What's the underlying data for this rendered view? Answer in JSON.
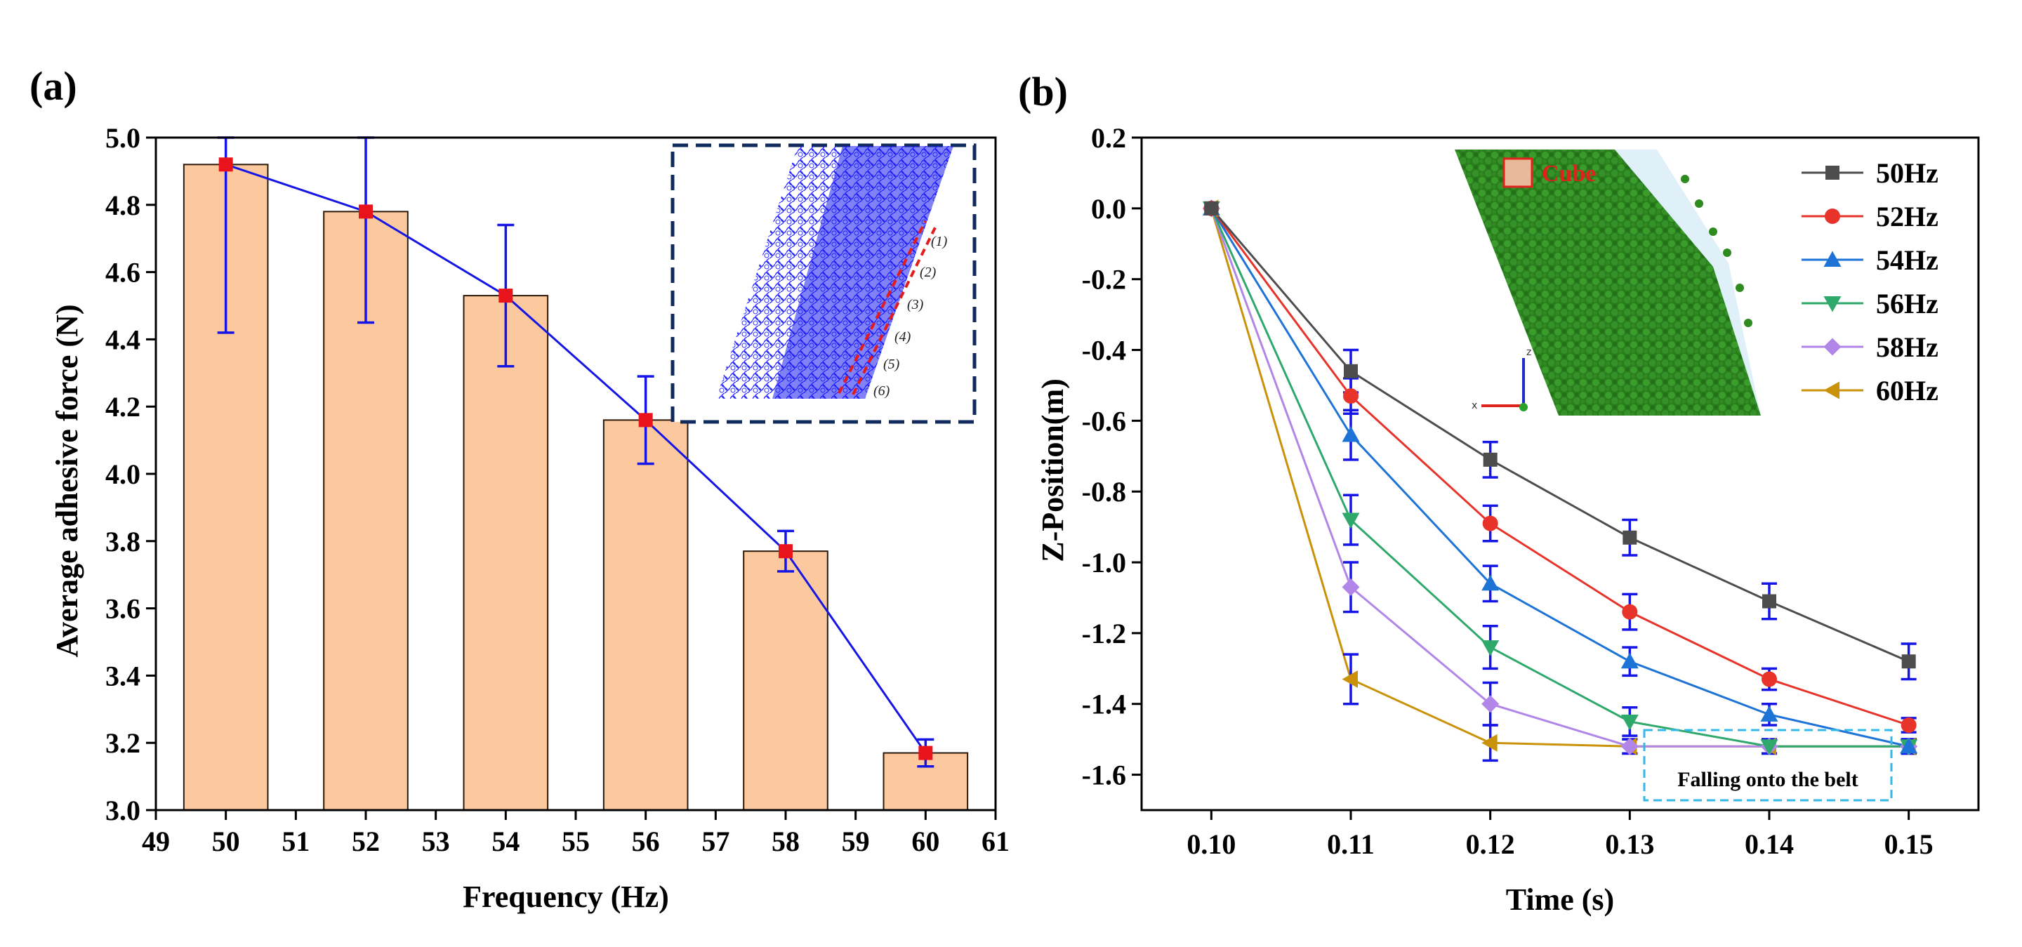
{
  "colors": {
    "bar_fill": "#fbc99d",
    "bar_stroke": "#2b1a0c",
    "line_a": "#1515e6",
    "marker_a": "#e8131b",
    "errorbar": "#1515e6",
    "inset_border": "#102a5c",
    "annotation_border": "#35b8e8",
    "cube_label": "#e0221c",
    "particles": "#2e8b20"
  },
  "chart_data": [
    {
      "id": "a",
      "panel_label": "(a)",
      "type": "bar",
      "xlabel": "Frequency (Hz)",
      "ylabel": "Average adhesive force (N)",
      "xlim": [
        49,
        61
      ],
      "ylim": [
        3.0,
        5.0
      ],
      "xticks": [
        "49",
        "50",
        "51",
        "52",
        "53",
        "54",
        "55",
        "56",
        "57",
        "58",
        "59",
        "60",
        "61"
      ],
      "yticks": [
        "3.0",
        "3.2",
        "3.4",
        "3.6",
        "3.8",
        "4.0",
        "4.2",
        "4.4",
        "4.6",
        "4.8",
        "5.0"
      ],
      "categories": [
        50,
        52,
        54,
        56,
        58,
        60
      ],
      "values": [
        4.92,
        4.78,
        4.53,
        4.16,
        3.77,
        3.17
      ],
      "error_low": [
        4.42,
        4.45,
        4.32,
        4.03,
        3.71,
        3.13
      ],
      "error_high": [
        5.0,
        5.0,
        4.74,
        4.29,
        3.83,
        3.21
      ],
      "overlay_line": true,
      "inset": {
        "description": "particle contact network",
        "labels": [
          "(1)",
          "(2)",
          "(3)",
          "(4)",
          "(5)",
          "(6)"
        ]
      }
    },
    {
      "id": "b",
      "panel_label": "(b)",
      "type": "line",
      "xlabel": "Time (s)",
      "ylabel": "Z-Position(m)",
      "xlim": [
        0.095,
        0.155
      ],
      "ylim": [
        -1.7,
        0.2
      ],
      "xticks": [
        "0.10",
        "0.11",
        "0.12",
        "0.13",
        "0.14",
        "0.15"
      ],
      "yticks": [
        "0.2",
        "0.0",
        "-0.2",
        "-0.4",
        "-0.6",
        "-0.8",
        "-1.0",
        "-1.2",
        "-1.4",
        "-1.6"
      ],
      "x": [
        0.1,
        0.11,
        0.12,
        0.13,
        0.14,
        0.15
      ],
      "series": [
        {
          "name": "50Hz",
          "color": "#4d4d4d",
          "marker": "square",
          "values": [
            0.0,
            -0.46,
            -0.71,
            -0.93,
            -1.11,
            -1.28
          ],
          "error": [
            0,
            0.06,
            0.05,
            0.05,
            0.05,
            0.05
          ]
        },
        {
          "name": "52Hz",
          "color": "#e8332b",
          "marker": "circle",
          "values": [
            0.0,
            -0.53,
            -0.89,
            -1.14,
            -1.33,
            -1.46
          ],
          "error": [
            0,
            0.05,
            0.05,
            0.05,
            0.03,
            0.02
          ]
        },
        {
          "name": "54Hz",
          "color": "#1e74d6",
          "marker": "triangle-up",
          "values": [
            0.0,
            -0.64,
            -1.06,
            -1.28,
            -1.43,
            -1.52
          ],
          "error": [
            0,
            0.07,
            0.05,
            0.04,
            0.03,
            0.02
          ]
        },
        {
          "name": "56Hz",
          "color": "#2fa86b",
          "marker": "triangle-down",
          "values": [
            0.0,
            -0.88,
            -1.24,
            -1.45,
            -1.52,
            -1.52
          ],
          "error": [
            0,
            0.07,
            0.06,
            0.04,
            0.02,
            0.02
          ]
        },
        {
          "name": "58Hz",
          "color": "#b186e8",
          "marker": "diamond",
          "values": [
            0.0,
            -1.07,
            -1.4,
            -1.52,
            -1.52,
            -1.52
          ],
          "error": [
            0,
            0.07,
            0.06,
            0.02,
            0.02,
            0.02
          ]
        },
        {
          "name": "60Hz",
          "color": "#c99208",
          "marker": "triangle-left",
          "values": [
            0.0,
            -1.33,
            -1.51,
            -1.52,
            -1.52,
            -1.52
          ],
          "error": [
            0,
            0.07,
            0.05,
            0.02,
            0.02,
            0.02
          ]
        }
      ],
      "legend_position": "top-right",
      "annotation": "Falling onto the belt",
      "inset": {
        "label": "Cube",
        "axes": [
          "x",
          "z"
        ]
      }
    }
  ]
}
